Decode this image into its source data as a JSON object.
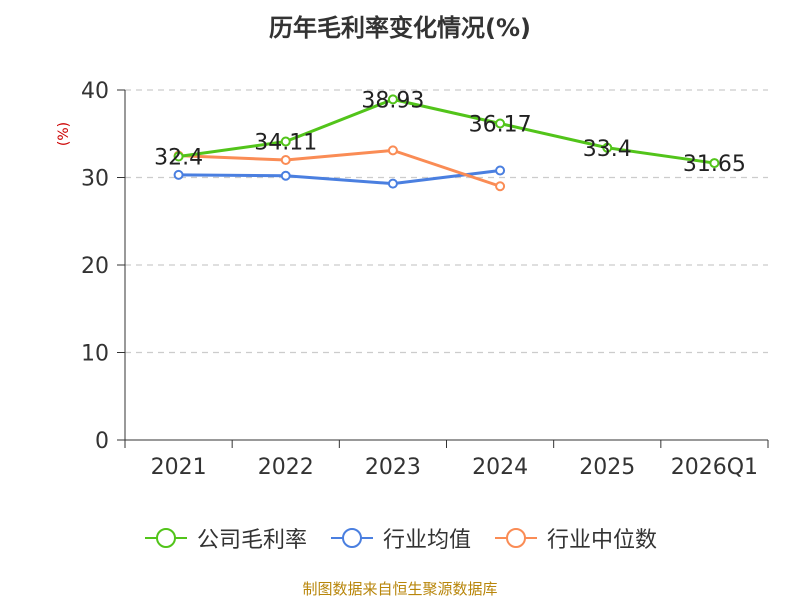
{
  "chart_data": {
    "type": "line",
    "title": "历年毛利率变化情况(%)",
    "ylabel": "(%)",
    "categories": [
      "2021",
      "2022",
      "2023",
      "2024",
      "2025",
      "2026Q1"
    ],
    "ylim": [
      0,
      40
    ],
    "yticks": [
      0,
      10,
      20,
      30,
      40
    ],
    "grid": true,
    "legend_position": "bottom",
    "series": [
      {
        "name": "公司毛利率",
        "color": "#52c41a",
        "values": [
          32.4,
          34.11,
          38.93,
          36.17,
          33.4,
          31.65
        ],
        "labels": [
          "32.4",
          "34.11",
          "38.93",
          "36.17",
          "33.4",
          "31.65"
        ]
      },
      {
        "name": "行业均值",
        "color": "#4a7fe0",
        "values": [
          30.3,
          30.2,
          29.3,
          30.8,
          null,
          null
        ]
      },
      {
        "name": "行业中位数",
        "color": "#fa8c55",
        "values": [
          32.5,
          32.0,
          33.1,
          29.0,
          null,
          null
        ]
      }
    ]
  },
  "source": "制图数据来自恒生聚源数据库"
}
